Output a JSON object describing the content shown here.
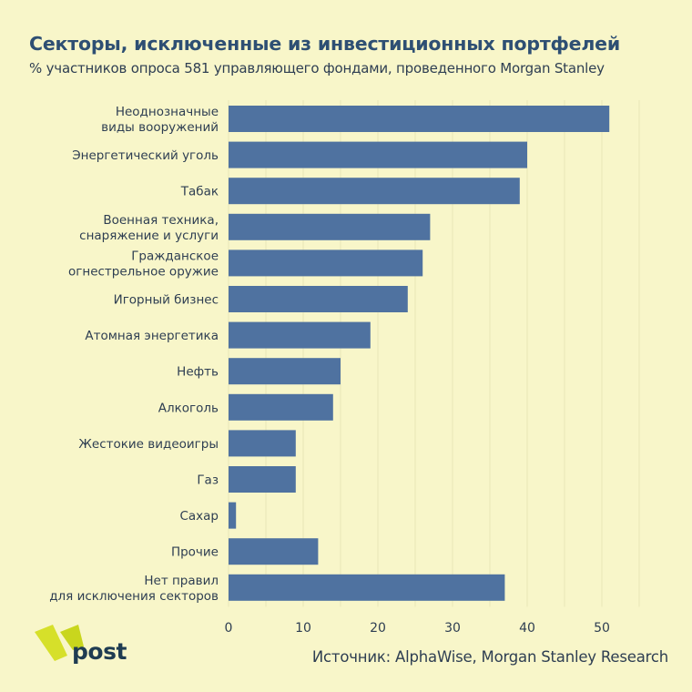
{
  "header": {
    "title": "Секторы, исключенные из инвестиционных портфелей",
    "subtitle": "% участников опроса 581 управляющего фондами, проведенного Morgan Stanley"
  },
  "footer": {
    "logo_text": "post",
    "source": "Источник: AlphaWise, Morgan Stanley Research"
  },
  "colors": {
    "bar": "#4f72a0",
    "background": "#f8f6c9",
    "grid": "#e8e5b8",
    "logo_mark": "#d6e02a"
  },
  "chart_data": {
    "type": "bar",
    "orientation": "horizontal",
    "title": "Секторы, исключенные из инвестиционных портфелей",
    "subtitle": "% участников опроса 581 управляющего фондами, проведенного Morgan Stanley",
    "categories": [
      [
        "Неоднозначные",
        "виды вооружений"
      ],
      [
        "Энергетический уголь"
      ],
      [
        "Табак"
      ],
      [
        "Военная техника,",
        "снаряжение и услуги"
      ],
      [
        "Гражданское",
        "огнестрельное оружие"
      ],
      [
        "Игорный бизнес"
      ],
      [
        "Атомная энергетика"
      ],
      [
        "Нефть"
      ],
      [
        "Алкоголь"
      ],
      [
        "Жестокие видеоигры"
      ],
      [
        "Газ"
      ],
      [
        "Сахар"
      ],
      [
        "Прочие"
      ],
      [
        "Нет правил",
        "для исключения секторов"
      ]
    ],
    "values": [
      51,
      40,
      39,
      27,
      26,
      24,
      19,
      15,
      14,
      9,
      9,
      1,
      12,
      37
    ],
    "xlim": [
      0,
      55
    ],
    "xticks": [
      0,
      10,
      20,
      30,
      40,
      50
    ],
    "grid": true,
    "legend": "none"
  }
}
